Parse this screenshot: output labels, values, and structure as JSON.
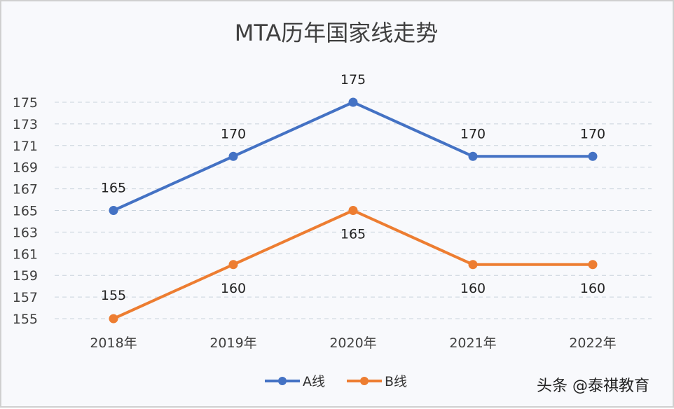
{
  "chart_data": {
    "type": "line",
    "title": "MTA历年国家线走势",
    "categories": [
      "2018年",
      "2019年",
      "2020年",
      "2021年",
      "2022年"
    ],
    "series": [
      {
        "name": "A线",
        "values": [
          165,
          170,
          175,
          170,
          170
        ],
        "color": "#4472c4"
      },
      {
        "name": "B线",
        "values": [
          155,
          160,
          165,
          160,
          160
        ],
        "color": "#ed7d31"
      }
    ],
    "yticks": [
      155,
      157,
      159,
      161,
      163,
      165,
      167,
      169,
      171,
      173,
      175
    ],
    "ylim": [
      155,
      175
    ],
    "xlabel": "",
    "ylabel": "",
    "grid": "horizontal dashed",
    "legend": "bottom",
    "data_labels": true
  },
  "watermark": "头条 @泰祺教育"
}
